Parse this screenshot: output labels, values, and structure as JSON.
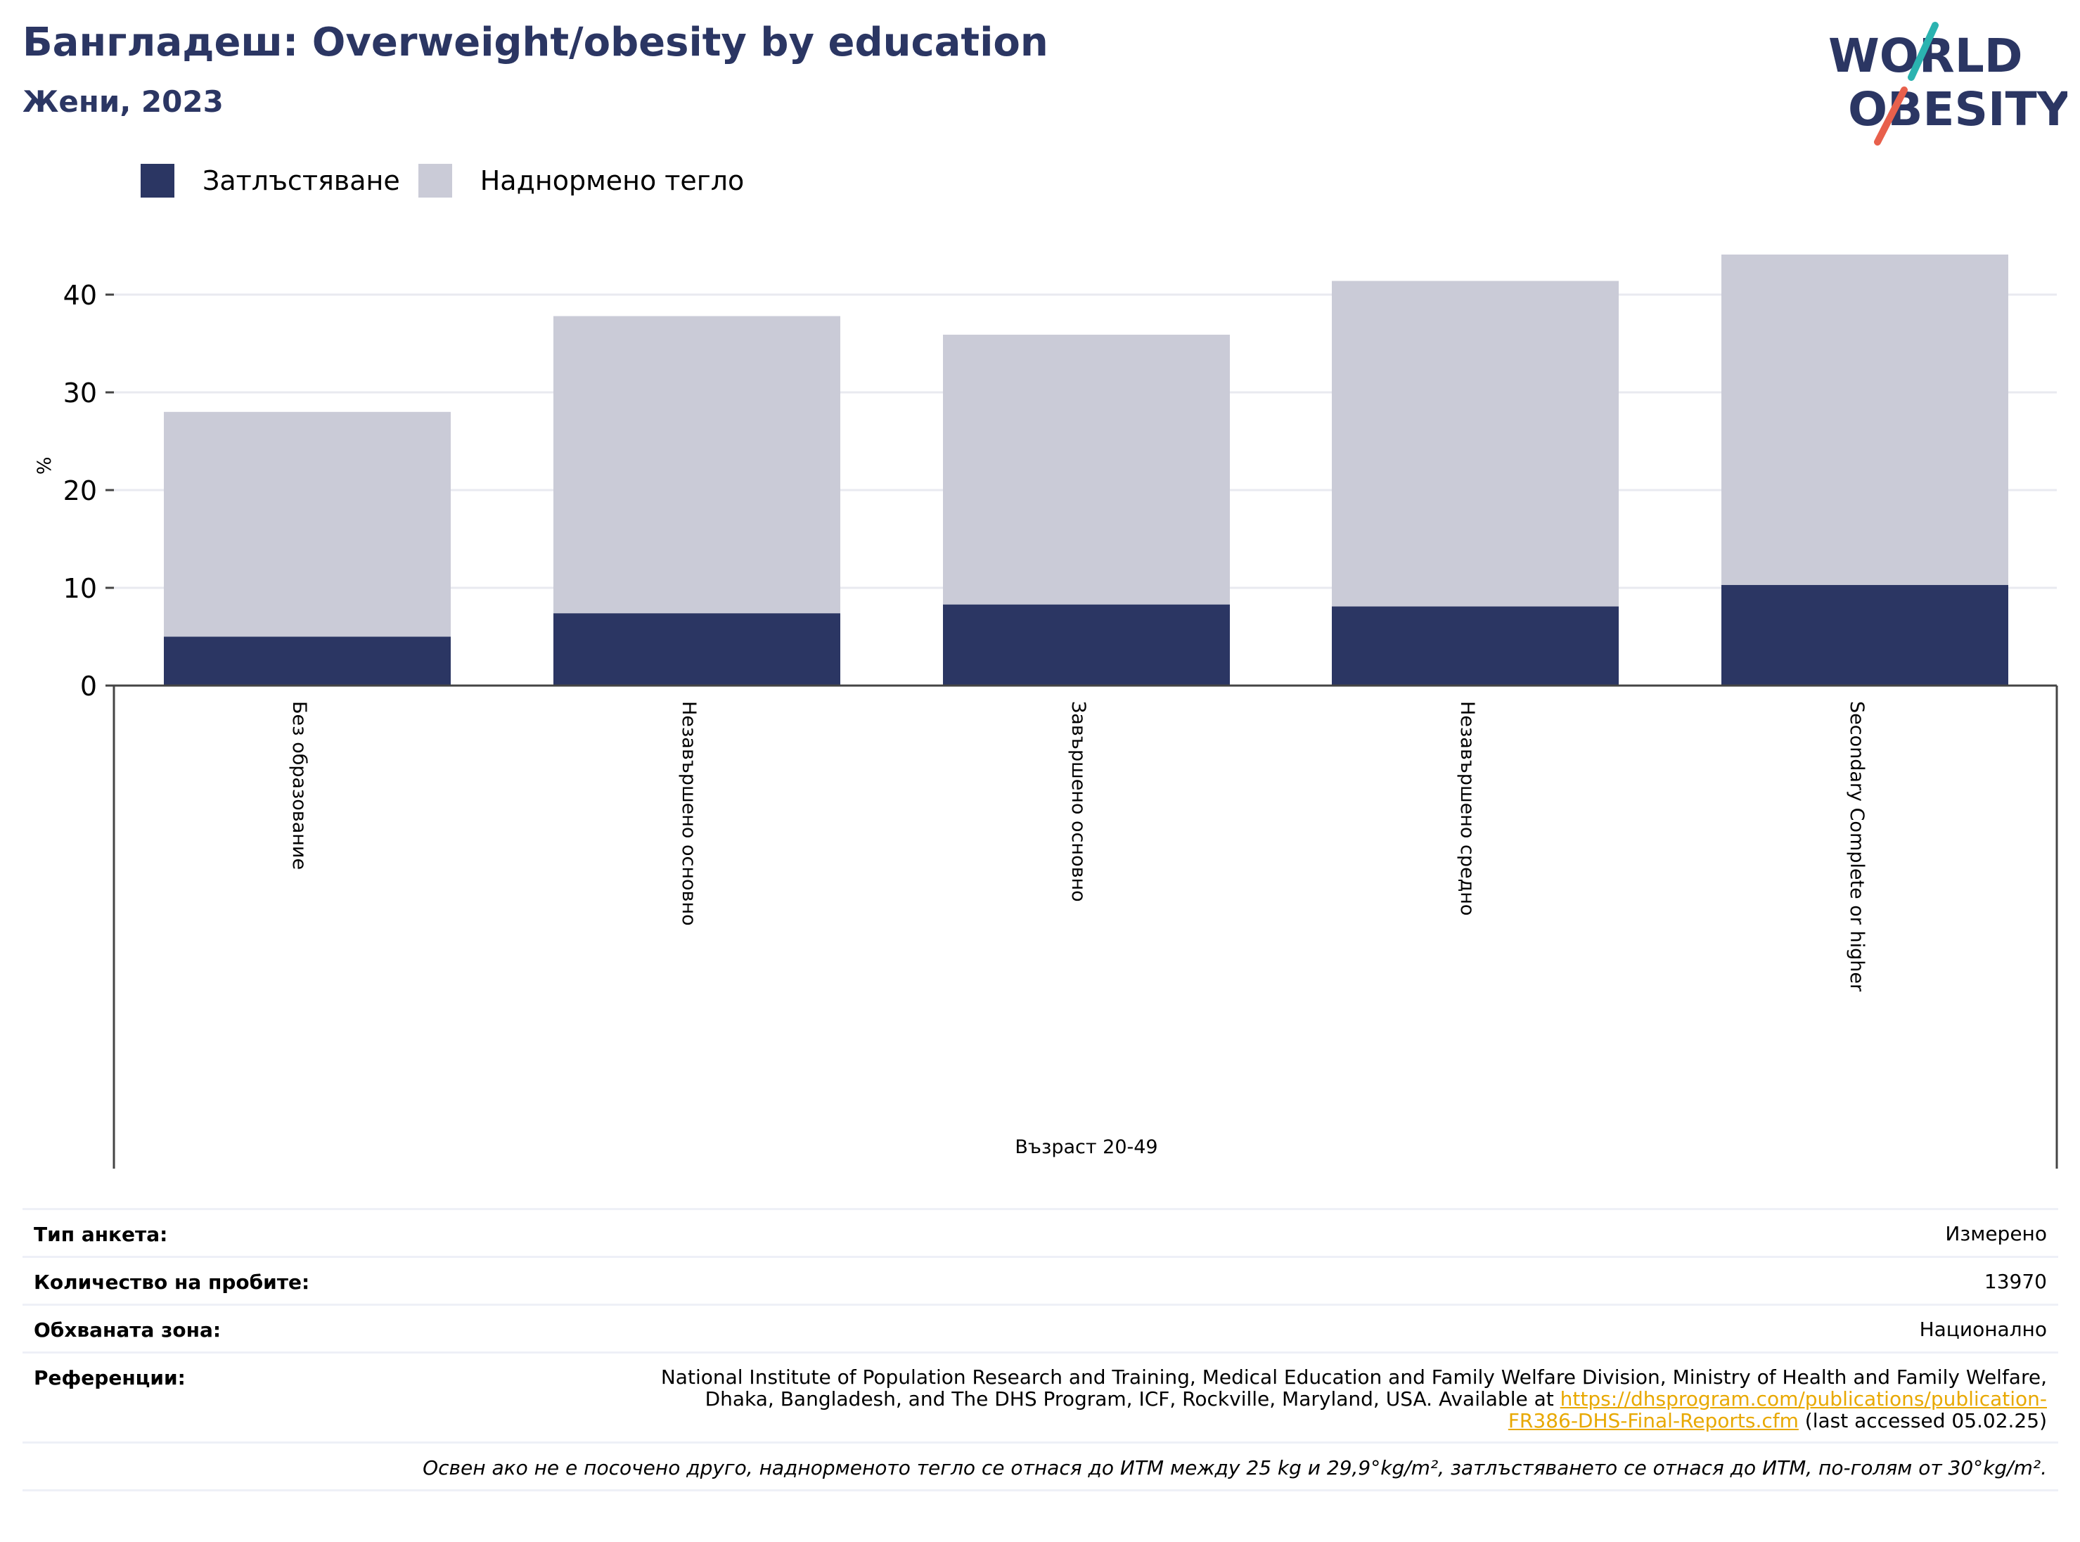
{
  "header": {
    "title": "Бангладеш: Overweight/obesity by education",
    "subtitle": "Жени, 2023"
  },
  "logo": {
    "line1": "WORLD",
    "line2": "OBESITY",
    "colors": {
      "navy": "#2b3663",
      "teal": "#2bb3b0",
      "coral": "#e8604c"
    }
  },
  "legend": {
    "items": [
      {
        "label": "Затлъстяване",
        "color": "#2b3663"
      },
      {
        "label": "Наднормено тегло",
        "color": "#cacbd7"
      }
    ]
  },
  "chart_data": {
    "type": "bar",
    "stacked": true,
    "categories": [
      "Без образование",
      "Незавършено основно",
      "Завършено основно",
      "Незавършено средно",
      "Secondary Complete or higher"
    ],
    "series": [
      {
        "name": "Затлъстяване",
        "color": "#2b3663",
        "values": [
          5.0,
          7.4,
          8.3,
          8.1,
          10.3
        ]
      },
      {
        "name": "Наднормено тегло",
        "color": "#cacbd7",
        "values": [
          23.0,
          30.4,
          27.6,
          33.3,
          33.8
        ]
      }
    ],
    "ylabel": "%",
    "xlabel": "Възраст 20-49",
    "ylim": [
      0,
      45
    ],
    "yticks": [
      0,
      10,
      20,
      30,
      40
    ],
    "grid": true,
    "legend_position": "top-left"
  },
  "info": {
    "survey_type_label": "Тип анкета:",
    "survey_type_value": "Измерено",
    "sample_size_label": "Количество на пробите:",
    "sample_size_value": "13970",
    "area_label": "Обхваната зона:",
    "area_value": "Национално",
    "references_label": "Референции:",
    "references_text_1": "National Institute of Population Research and Training, Medical Education and Family Welfare Division, Ministry of Health and Family Welfare,",
    "references_text_2": "Dhaka, Bangladesh, and The DHS Program, ICF, Rockville, Maryland, USA. Available at",
    "references_link_1": "https://dhsprogram.com/publications/publication-",
    "references_link_2": "FR386-DHS-Final-Reports.cfm",
    "references_suffix": "(last accessed 05.02.25)",
    "note": "Освен ако не е посочено друго, наднорменото тегло се отнася до ИТМ между 25 kg и 29,9°kg/m², затлъстяването се отнася до ИТМ, по-голям от 30°kg/m²."
  }
}
